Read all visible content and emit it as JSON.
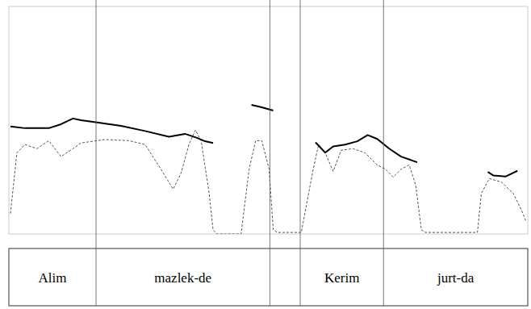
{
  "chart_data": {
    "type": "line",
    "tick_labels": false,
    "xlim": [
      0,
      2
    ],
    "ylim": [
      0,
      400
    ],
    "y2lim": [
      30,
      90
    ],
    "series": [
      {
        "color": "#000000",
        "line_style": "solid",
        "x": [
          0.006,
          0.062,
          0.154,
          0.201,
          0.247,
          0.278,
          0.34,
          0.432,
          0.525,
          0.617,
          0.679,
          0.725,
          0.756,
          0.787,
          0.86,
          0.935,
          0.972,
          1.019,
          1.1,
          1.182,
          1.219,
          1.25,
          1.296,
          1.343,
          1.383,
          1.42,
          1.466,
          1.512,
          1.574,
          1.7,
          1.846,
          1.867,
          1.914,
          1.96
        ],
        "values": [
          189,
          186,
          186,
          193,
          203,
          200,
          196,
          190,
          181,
          171,
          176,
          169,
          163,
          160,
          null,
          227,
          223,
          217,
          null,
          161,
          143,
          154,
          157,
          163,
          174,
          167,
          150,
          136,
          126,
          null,
          109,
          103,
          101,
          111
        ]
      },
      {
        "color": "#555555",
        "line_style": "dashed",
        "axis": "y2",
        "x": [
          0.006,
          0.031,
          0.062,
          0.108,
          0.154,
          0.201,
          0.247,
          0.278,
          0.37,
          0.463,
          0.525,
          0.586,
          0.633,
          0.664,
          0.694,
          0.719,
          0.741,
          0.772,
          0.787,
          0.802,
          0.895,
          0.926,
          0.951,
          0.975,
          1.003,
          1.019,
          1.034,
          1.127,
          1.173,
          1.194,
          1.219,
          1.25,
          1.281,
          1.327,
          1.373,
          1.42,
          1.451,
          1.481,
          1.512,
          1.543,
          1.568,
          1.59,
          1.605,
          1.806,
          1.821,
          1.852,
          1.898,
          1.944,
          1.975,
          1.994
        ],
        "values": [
          35.4,
          51.4,
          53.6,
          52.5,
          54.6,
          50.4,
          52.5,
          54,
          54.9,
          54.6,
          53.6,
          47.1,
          41.8,
          46.1,
          53.6,
          57.4,
          54.6,
          40.7,
          31.1,
          30,
          30,
          47.1,
          54.6,
          54.6,
          47.1,
          31.1,
          30.4,
          30.4,
          47.1,
          53.6,
          51.4,
          46.5,
          52.1,
          52.5,
          51.4,
          48.2,
          47.1,
          45,
          47.1,
          48.2,
          42.9,
          31.1,
          30.4,
          30.4,
          40.7,
          44.6,
          43.7,
          40.7,
          36.4,
          33.2
        ]
      }
    ],
    "intervals": [
      {
        "label": "Alim",
        "start": 0,
        "end": 0.336
      },
      {
        "label": "mazlek-de",
        "start": 0.336,
        "end": 1.006
      },
      {
        "label": "Kerim",
        "start": 1.123,
        "end": 1.444
      },
      {
        "label": "jurt-da",
        "start": 1.444,
        "end": 2
      }
    ]
  }
}
